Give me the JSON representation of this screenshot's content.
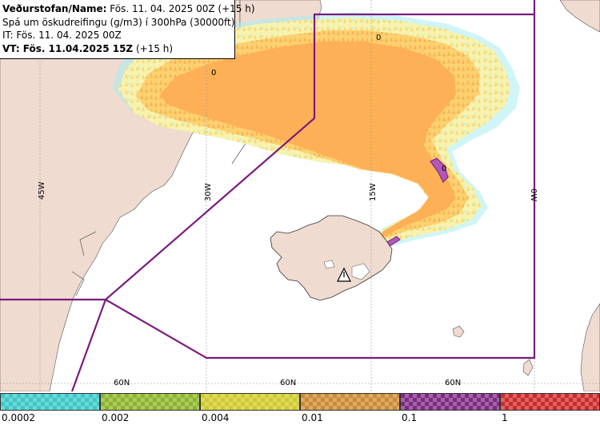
{
  "header": {
    "line1_label": "Veðurstofan/Name:",
    "line1_value": "Fös. 11. 04. 2025 00Z (+15 h)",
    "line2": "Spá um öskudreifingu (g/m3) í 300hPa (30000ft)",
    "line3": "IT: Fös. 11. 04. 2025 00Z",
    "line4_label": "VT: Fös. 11.04.2025 15Z",
    "line4_value": "(+15 h)"
  },
  "grid_labels": {
    "lon_45w": "45W",
    "lon_30w": "30W",
    "lon_15w": "15W",
    "lon_0w": "0W",
    "lat_a": "60N",
    "lat_b": "60N",
    "lat_c": "60N"
  },
  "contour_labels": {
    "c1": "0",
    "c2": "0",
    "c3": "0"
  },
  "legend": {
    "ticks": [
      "0.0002",
      "0.002",
      "0.004",
      "0.01",
      "0.1",
      "1"
    ],
    "colors": [
      "#3ac8c8",
      "#8cb42a",
      "#cfca2a",
      "#cc8a32",
      "#7e2a84",
      "#cc2a2a"
    ]
  },
  "colors": {
    "land": "#f0dbd0",
    "sea": "#ffffff",
    "region_border": "#7b1a7e",
    "ash_low": "#f4f2a4",
    "ash_mid": "#fbd46a",
    "ash_high": "#fdb056",
    "ash_peak": "#b05ab8",
    "ash_fringe": "#a7ecf0"
  },
  "volcano_icon": "volcano-warning-icon"
}
